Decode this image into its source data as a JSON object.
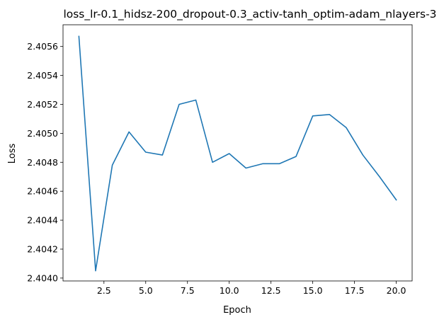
{
  "chart_data": {
    "type": "line",
    "title": "loss_lr-0.1_hidsz-200_dropout-0.3_activ-tanh_optim-adam_nlayers-3",
    "xlabel": "Epoch",
    "ylabel": "Loss",
    "xlim": [
      0.05,
      20.95
    ],
    "ylim": [
      2.40398,
      2.40575
    ],
    "grid": false,
    "legend": "none",
    "line_color": "#1f77b4",
    "x_ticks": [
      2.5,
      5.0,
      7.5,
      10.0,
      12.5,
      15.0,
      17.5,
      20.0
    ],
    "x_tick_labels": [
      "2.5",
      "5.0",
      "7.5",
      "10.0",
      "12.5",
      "15.0",
      "17.5",
      "20.0"
    ],
    "y_ticks": [
      2.404,
      2.4042,
      2.4044,
      2.4046,
      2.4048,
      2.405,
      2.4052,
      2.4054,
      2.4056
    ],
    "y_tick_labels": [
      "2.4040",
      "2.4042",
      "2.4044",
      "2.4046",
      "2.4048",
      "2.4050",
      "2.4052",
      "2.4054",
      "2.4056"
    ],
    "x": [
      1,
      2,
      3,
      4,
      5,
      6,
      7,
      8,
      9,
      10,
      11,
      12,
      13,
      14,
      15,
      16,
      17,
      18,
      19,
      20
    ],
    "series": [
      {
        "values": [
          2.40567,
          2.40405,
          2.40478,
          2.40501,
          2.40487,
          2.40485,
          2.4052,
          2.40523,
          2.4048,
          2.40486,
          2.40476,
          2.40479,
          2.40479,
          2.40484,
          2.40512,
          2.40513,
          2.40504,
          2.40485,
          2.4047,
          2.40454
        ]
      }
    ]
  }
}
